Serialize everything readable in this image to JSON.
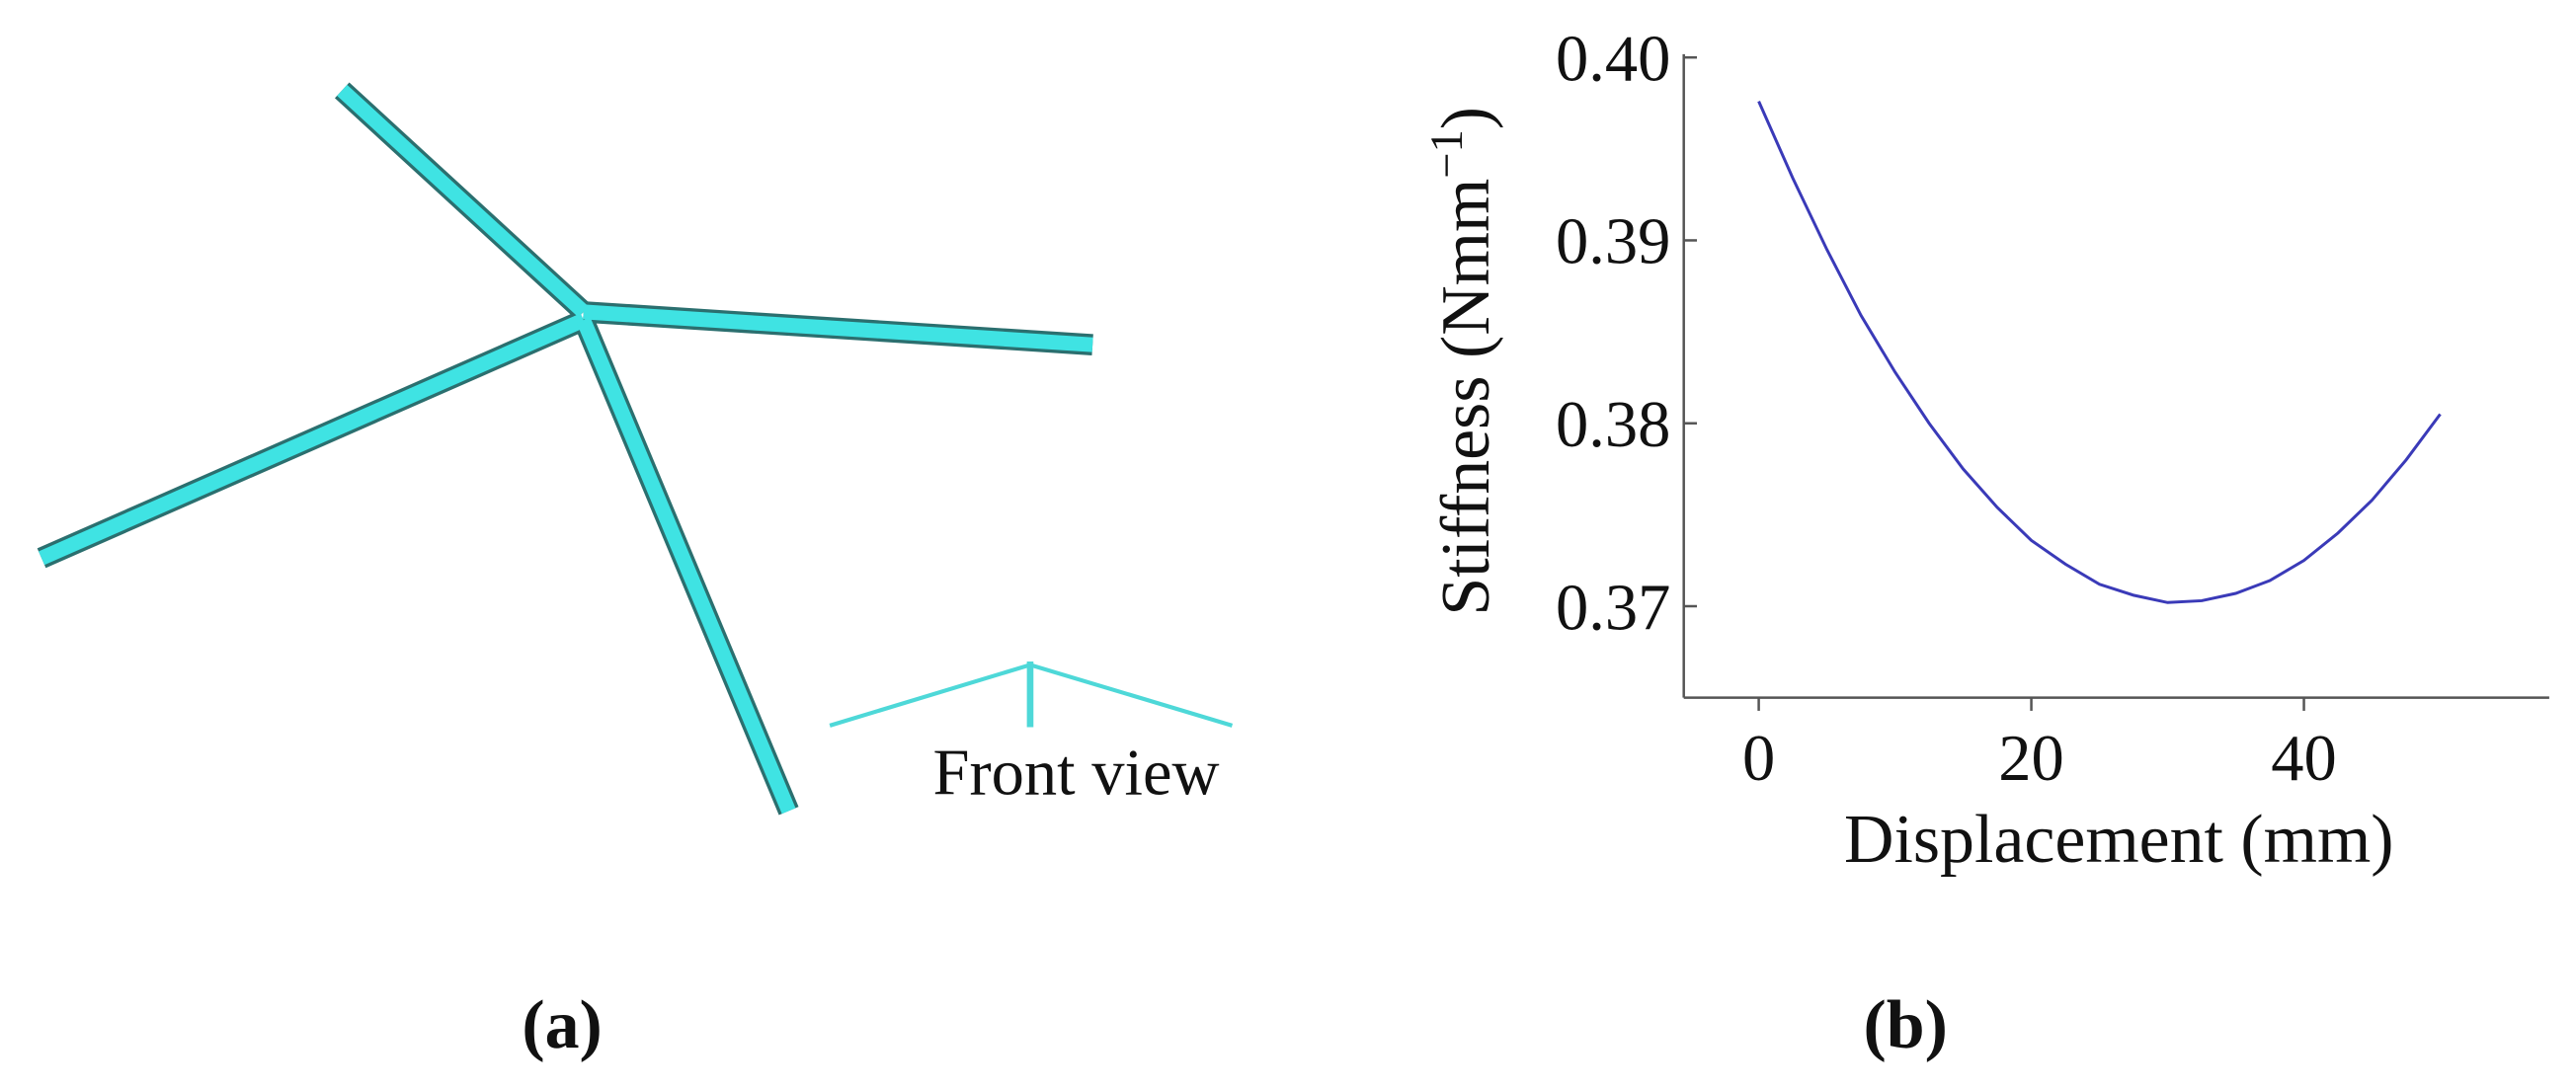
{
  "panel_a": {
    "label": "(a)",
    "annotation": "Front view"
  },
  "chart_data": {
    "type": "line",
    "panel_label": "(b)",
    "xlabel": "Displacement (mm)",
    "ylabel": "Stiffness  (Nmm",
    "ylabel_superscript": "−1",
    "ylabel_end": ")",
    "x": [
      0,
      2.5,
      5,
      7.5,
      10,
      12.5,
      15,
      17.5,
      20,
      22.5,
      25,
      27.5,
      30,
      32.5,
      35,
      37.5,
      40,
      42.5,
      45,
      47.5,
      50
    ],
    "series": [
      {
        "color": "#3a3ab8",
        "values": [
          0.3976,
          0.3934,
          0.3895,
          0.3859,
          0.3828,
          0.38,
          0.3775,
          0.3754,
          0.3736,
          0.3723,
          0.3712,
          0.3706,
          0.3702,
          0.3703,
          0.3707,
          0.3714,
          0.3725,
          0.374,
          0.3758,
          0.378,
          0.3805
        ]
      }
    ],
    "xlim": [
      -5.5,
      58
    ],
    "ylim": [
      0.365,
      0.4
    ],
    "xticks": [
      0,
      20,
      40
    ],
    "yticks": [
      {
        "value": 0.4,
        "label": "0.40"
      },
      0.39,
      0.38,
      0.37
    ]
  }
}
